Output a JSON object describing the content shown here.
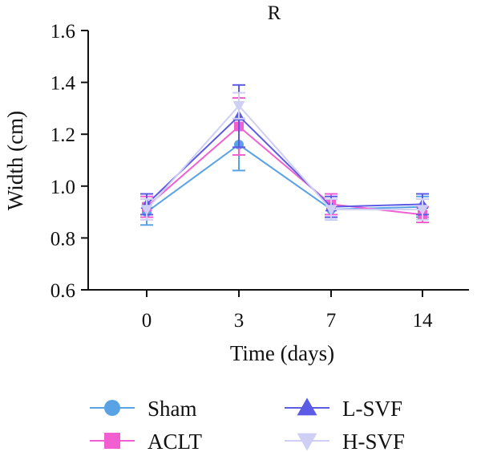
{
  "chart_data": {
    "type": "line",
    "title": "R",
    "xlabel": "Time (days)",
    "ylabel": "Width (cm)",
    "categories": [
      "0",
      "3",
      "7",
      "14"
    ],
    "ylim": [
      0.6,
      1.6
    ],
    "yticks": [
      "0.6",
      "0.8",
      "1.0",
      "1.2",
      "1.4",
      "1.6"
    ],
    "grid": false,
    "legend_position": "bottom",
    "series": [
      {
        "name": "Sham",
        "color": "#5aa2e6",
        "marker": "circle",
        "values": [
          0.9,
          1.16,
          0.91,
          0.92
        ],
        "errors": [
          0.05,
          0.1,
          0.04,
          0.04
        ]
      },
      {
        "name": "ACLT",
        "color": "#f25fd0",
        "marker": "square",
        "values": [
          0.92,
          1.23,
          0.93,
          0.89
        ],
        "errors": [
          0.04,
          0.11,
          0.04,
          0.03
        ]
      },
      {
        "name": "L-SVF",
        "color": "#5b5be6",
        "marker": "triangle-up",
        "values": [
          0.93,
          1.27,
          0.92,
          0.93
        ],
        "errors": [
          0.04,
          0.12,
          0.04,
          0.04
        ]
      },
      {
        "name": "H-SVF",
        "color": "#cfcff5",
        "marker": "triangle-down",
        "values": [
          0.91,
          1.31,
          0.91,
          0.91
        ],
        "errors": [
          0.04,
          0.05,
          0.04,
          0.04
        ]
      }
    ]
  }
}
